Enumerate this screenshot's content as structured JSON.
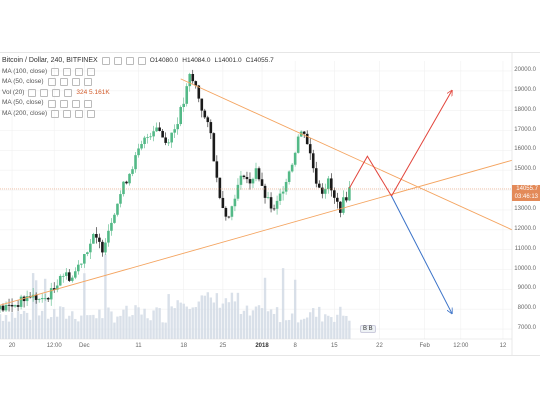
{
  "header": {
    "symbol": "Bitcoin / Dollar, 240, BITFINEX",
    "ohlc": {
      "open": "O14080.0",
      "high": "H14084.0",
      "low": "L14001.0",
      "close": "C14055.7"
    }
  },
  "indicators": [
    {
      "label": "MA (100, close)",
      "value": ""
    },
    {
      "label": "MA (50, close)",
      "value": ""
    },
    {
      "label": "Vol (20)",
      "value": "324  5.161K"
    },
    {
      "label": "MA (50, close)",
      "value": ""
    },
    {
      "label": "MA (200, close)",
      "value": ""
    }
  ],
  "price_axis": {
    "ticks": [
      "20000.0",
      "19000.0",
      "18000.0",
      "17000.0",
      "16000.0",
      "15000.0",
      "14000.0",
      "13000.0",
      "12000.0",
      "11000.0",
      "10000.0",
      "9000.0",
      "8000.0",
      "7000.0"
    ],
    "last_price": "14055.7",
    "countdown": "03:46:13"
  },
  "time_axis": {
    "ticks": [
      {
        "label": "20",
        "bold": false
      },
      {
        "label": "12:00",
        "bold": false
      },
      {
        "label": "Dec",
        "bold": false
      },
      {
        "label": "11",
        "bold": false
      },
      {
        "label": "18",
        "bold": false
      },
      {
        "label": "25",
        "bold": false
      },
      {
        "label": "2018",
        "bold": true
      },
      {
        "label": "8",
        "bold": false
      },
      {
        "label": "15",
        "bold": false
      },
      {
        "label": "22",
        "bold": false
      },
      {
        "label": "Feb",
        "bold": false
      },
      {
        "label": "12:00",
        "bold": false
      },
      {
        "label": "12",
        "bold": false
      }
    ]
  },
  "watermark": "B B",
  "colors": {
    "up": "#53b987",
    "down": "#1a1a1a",
    "trendline": "#f4a460",
    "projection_up": "#e2453c",
    "projection_down": "#3a72c8",
    "last_price_tag": "#e38a59"
  },
  "chart_data": {
    "type": "candlestick",
    "instrument": "Bitcoin / Dollar",
    "interval": "240",
    "exchange": "BITFINEX",
    "ylim": [
      6500,
      20500
    ],
    "close_path": [
      [
        0,
        8000
      ],
      [
        6,
        8300
      ],
      [
        10,
        8700
      ],
      [
        14,
        8400
      ],
      [
        18,
        9000
      ],
      [
        20,
        9800
      ],
      [
        24,
        9600
      ],
      [
        28,
        10800
      ],
      [
        31,
        11600
      ],
      [
        34,
        11100
      ],
      [
        38,
        13000
      ],
      [
        41,
        14200
      ],
      [
        45,
        15600
      ],
      [
        48,
        16500
      ],
      [
        52,
        17300
      ],
      [
        55,
        16400
      ],
      [
        58,
        17100
      ],
      [
        61,
        18400
      ],
      [
        63,
        19700
      ],
      [
        65,
        19200
      ],
      [
        68,
        17600
      ],
      [
        70,
        16800
      ],
      [
        72,
        14500
      ],
      [
        74,
        13200
      ],
      [
        76,
        12600
      ],
      [
        78,
        13800
      ],
      [
        81,
        14900
      ],
      [
        83,
        14200
      ],
      [
        85,
        15200
      ],
      [
        87,
        14000
      ],
      [
        89,
        13400
      ],
      [
        91,
        12900
      ],
      [
        93,
        13700
      ],
      [
        95,
        14600
      ],
      [
        97,
        15400
      ],
      [
        99,
        16700
      ],
      [
        101,
        17000
      ],
      [
        103,
        15800
      ],
      [
        105,
        14500
      ],
      [
        107,
        14000
      ],
      [
        109,
        14400
      ],
      [
        111,
        13500
      ],
      [
        113,
        13100
      ],
      [
        115,
        13700
      ],
      [
        116,
        14055.7
      ]
    ],
    "candle_count": 117,
    "x_tick_index": [
      4,
      18,
      28,
      46,
      61,
      74,
      87,
      98,
      111,
      126,
      141,
      153,
      167
    ],
    "x_max_index": 170,
    "volume": {
      "series": "Vol (20)",
      "last": 324,
      "ma": "5.161K"
    },
    "trendlines": [
      {
        "name": "upper",
        "from": [
          60,
          19600
        ],
        "to": [
          170,
          12000
        ]
      },
      {
        "name": "lower",
        "from": [
          0,
          8200
        ],
        "to": [
          170,
          15500
        ]
      }
    ],
    "projections": [
      {
        "direction": "up",
        "points": [
          [
            116,
            14100
          ],
          [
            122,
            15700
          ],
          [
            130,
            13700
          ],
          [
            150,
            19000
          ]
        ]
      },
      {
        "direction": "down",
        "points": [
          [
            130,
            13700
          ],
          [
            150,
            7800
          ]
        ]
      }
    ],
    "last_price": 14055.7
  }
}
